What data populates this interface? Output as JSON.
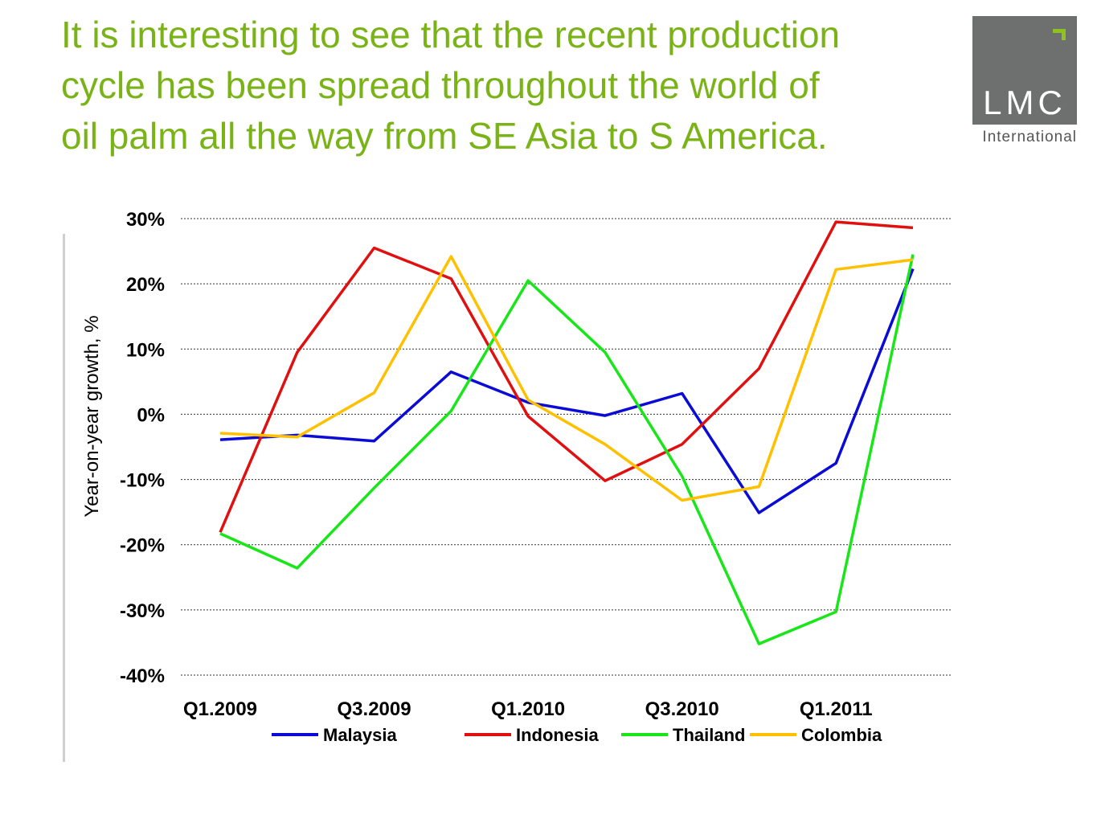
{
  "headline": {
    "line1": "It is interesting to see that the recent production",
    "line2": "cycle has been spread throughout the world of",
    "line3": "oil palm all the way from SE Asia to S America."
  },
  "logo": {
    "text": "LMC",
    "subtitle": "International",
    "box_color": "#6e6f6f",
    "accent_color": "#8dc21f"
  },
  "chart_data": {
    "type": "line",
    "title": "",
    "xlabel": "",
    "ylabel": "Year-on-year growth, %",
    "ylim": [
      -40,
      30
    ],
    "yticks": [
      30,
      20,
      10,
      0,
      -10,
      -20,
      -30,
      -40
    ],
    "ytick_labels": [
      "30%",
      "20%",
      "10%",
      "0%",
      "-10%",
      "-20%",
      "-30%",
      "-40%"
    ],
    "categories": [
      "Q1.2009",
      "Q2.2009",
      "Q3.2009",
      "Q4.2009",
      "Q1.2010",
      "Q2.2010",
      "Q3.2010",
      "Q4.2010",
      "Q1.2011",
      "Q2.2011"
    ],
    "xtick_labels": [
      "Q1.2009",
      "",
      "Q3.2009",
      "",
      "Q1.2010",
      "",
      "Q3.2010",
      "",
      "Q1.2011",
      ""
    ],
    "grid": "horizontal dotted",
    "legend_position": "bottom",
    "series": [
      {
        "name": "Malaysia",
        "color": "#0b0bd6",
        "values": [
          -3.9,
          -3.2,
          -4.1,
          6.5,
          1.8,
          -0.2,
          3.2,
          -15.1,
          -7.5,
          22.3
        ]
      },
      {
        "name": "Indonesia",
        "color": "#e01010",
        "values": [
          -18.1,
          9.5,
          25.5,
          20.8,
          -0.3,
          -10.2,
          -4.6,
          7.0,
          29.5,
          28.6
        ]
      },
      {
        "name": "Thailand",
        "color": "#19e619",
        "values": [
          -18.3,
          -23.6,
          -11.3,
          0.5,
          20.5,
          9.5,
          -9.5,
          -35.2,
          -30.3,
          24.5
        ]
      },
      {
        "name": "Colombia",
        "color": "#ffc000",
        "values": [
          -2.9,
          -3.5,
          3.3,
          24.2,
          2.2,
          -4.6,
          -13.2,
          -11.1,
          22.2,
          23.7
        ]
      }
    ]
  }
}
